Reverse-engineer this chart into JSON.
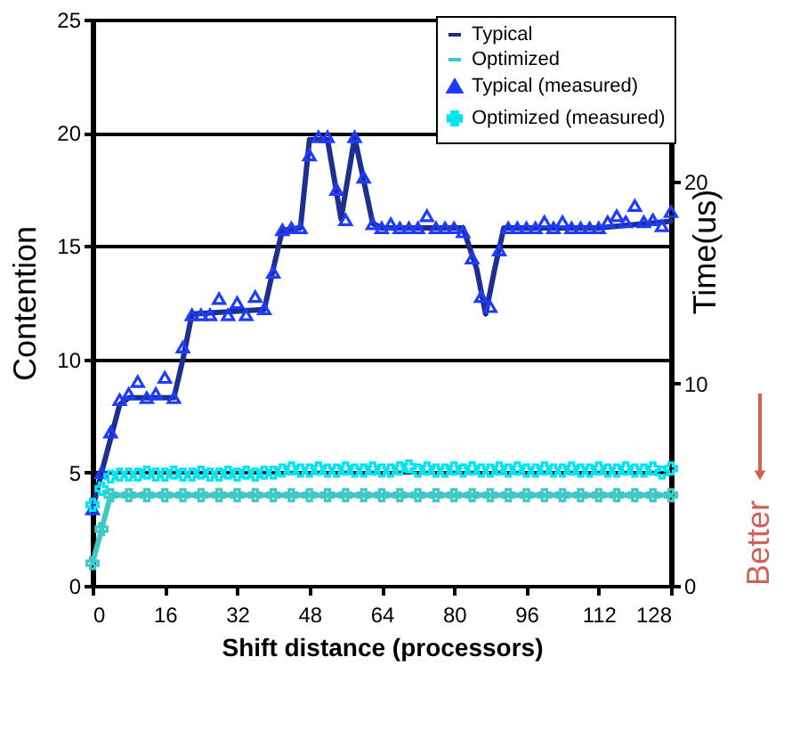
{
  "chart_data": {
    "type": "line",
    "xlabel": "Shift distance  (processors)",
    "ylabel": "Contention",
    "y2label": "Time(us)",
    "xlim": [
      0,
      128
    ],
    "xticks": [
      0,
      16,
      32,
      48,
      64,
      80,
      96,
      112,
      128
    ],
    "ylim": [
      0,
      25
    ],
    "yticks": [
      0,
      5,
      10,
      15,
      20,
      25
    ],
    "y2lim": [
      0,
      28
    ],
    "y2ticks": [
      0,
      10,
      20
    ],
    "grid": "y",
    "legend": "top right",
    "annotations": [
      "Better"
    ],
    "series": [
      {
        "name": "Typical",
        "color": "#1f2f8f",
        "marker": "none",
        "x": [
          0,
          2,
          4,
          6,
          8,
          18,
          20,
          22,
          38,
          40,
          42,
          46,
          48,
          52,
          55,
          58,
          62,
          64,
          82,
          85,
          87,
          89,
          91,
          112,
          128
        ],
        "values": [
          3.4,
          5,
          6.5,
          8,
          8.3,
          8.3,
          10,
          12,
          12.2,
          14,
          15.7,
          15.8,
          19.7,
          19.7,
          16.2,
          19.8,
          16,
          15.8,
          15.8,
          14,
          12,
          14,
          15.8,
          15.8,
          16.1
        ]
      },
      {
        "name": "Optimized",
        "color": "#40c8c8",
        "marker": "cross",
        "x": [
          0,
          2,
          4,
          8,
          12,
          16,
          20,
          24,
          28,
          32,
          36,
          40,
          44,
          48,
          52,
          56,
          60,
          64,
          68,
          72,
          76,
          80,
          84,
          88,
          92,
          96,
          100,
          104,
          108,
          112,
          116,
          120,
          124,
          128
        ],
        "values": [
          1,
          2.5,
          4,
          4,
          4,
          4,
          4,
          4,
          4,
          4,
          4,
          4,
          4,
          4,
          4,
          4,
          4,
          4,
          4,
          4,
          4,
          4,
          4,
          4,
          4,
          4,
          4,
          4,
          4,
          4,
          4,
          4,
          4,
          4
        ]
      },
      {
        "name": "Typical (measured)",
        "type": "scatter",
        "axis": "y2",
        "color": "#1e3cff",
        "marker": "triangle",
        "x": [
          0,
          2,
          4,
          6,
          8,
          10,
          12,
          14,
          16,
          18,
          20,
          22,
          24,
          26,
          28,
          30,
          32,
          34,
          36,
          38,
          40,
          42,
          44,
          46,
          48,
          50,
          52,
          54,
          56,
          58,
          60,
          62,
          64,
          66,
          68,
          70,
          72,
          74,
          76,
          78,
          80,
          82,
          84,
          86,
          88,
          90,
          92,
          94,
          96,
          98,
          100,
          102,
          104,
          106,
          108,
          110,
          112,
          114,
          116,
          118,
          120,
          122,
          124,
          126,
          128
        ],
        "values": [
          3.8,
          5.6,
          7.6,
          9.2,
          9.5,
          10.1,
          9.3,
          9.5,
          10.3,
          9.3,
          11.8,
          13.4,
          13.4,
          13.4,
          14.2,
          13.4,
          14,
          13.4,
          14.3,
          13.7,
          15.5,
          17.6,
          17.7,
          17.7,
          21.3,
          22.2,
          22.2,
          19.6,
          18.1,
          22.2,
          20.2,
          17.9,
          17.7,
          17.9,
          17.7,
          17.7,
          17.7,
          18.3,
          17.7,
          17.7,
          17.7,
          17.5,
          16.2,
          14.3,
          13.8,
          16.6,
          17.7,
          17.7,
          17.7,
          17.7,
          18,
          17.7,
          18,
          17.7,
          17.7,
          17.7,
          17.7,
          18,
          18.3,
          18,
          18.8,
          18,
          18.1,
          17.8,
          18.5
        ]
      },
      {
        "name": "Optimized (measured)",
        "type": "scatter",
        "axis": "y2",
        "color": "#00e5f0",
        "marker": "cross",
        "x": [
          0,
          2,
          4,
          6,
          8,
          10,
          12,
          14,
          16,
          18,
          20,
          22,
          24,
          26,
          28,
          30,
          32,
          34,
          36,
          38,
          40,
          42,
          44,
          46,
          48,
          50,
          52,
          54,
          56,
          58,
          60,
          62,
          64,
          66,
          68,
          70,
          72,
          74,
          76,
          78,
          80,
          82,
          84,
          86,
          88,
          90,
          92,
          94,
          96,
          98,
          100,
          102,
          104,
          106,
          108,
          110,
          112,
          114,
          116,
          118,
          120,
          122,
          124,
          126,
          128
        ],
        "values": [
          4.0,
          4.8,
          5.4,
          5.5,
          5.5,
          5.5,
          5.6,
          5.5,
          5.5,
          5.6,
          5.5,
          5.5,
          5.6,
          5.5,
          5.5,
          5.6,
          5.5,
          5.6,
          5.5,
          5.6,
          5.6,
          5.7,
          5.8,
          5.7,
          5.7,
          5.8,
          5.7,
          5.7,
          5.8,
          5.7,
          5.7,
          5.8,
          5.7,
          5.7,
          5.8,
          5.9,
          5.7,
          5.8,
          5.7,
          5.7,
          5.8,
          5.7,
          5.8,
          5.7,
          5.7,
          5.8,
          5.7,
          5.8,
          5.7,
          5.7,
          5.8,
          5.7,
          5.7,
          5.8,
          5.7,
          5.7,
          5.8,
          5.7,
          5.7,
          5.8,
          5.7,
          5.7,
          5.8,
          5.6,
          5.8
        ]
      }
    ]
  }
}
